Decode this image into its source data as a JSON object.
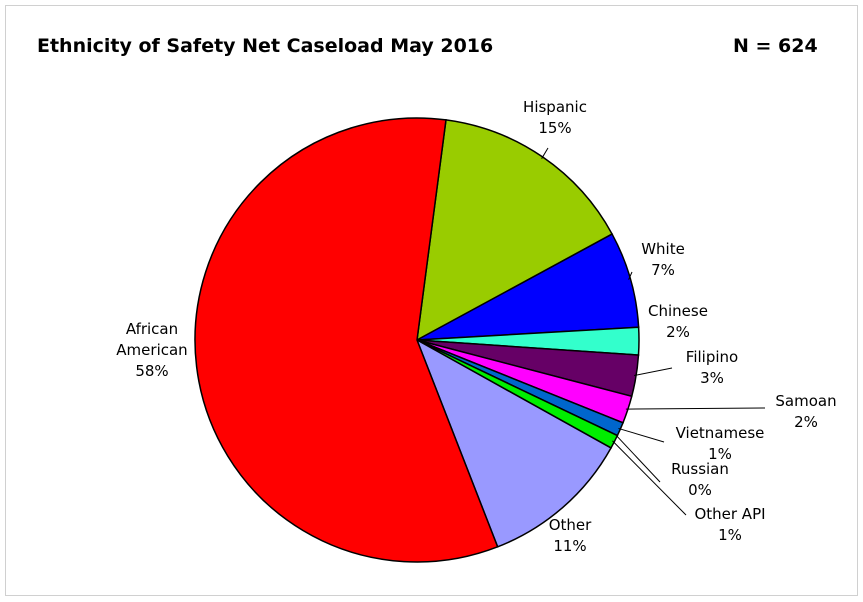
{
  "chart_data": {
    "type": "pie",
    "title": "Ethnicity of Safety Net Caseload May 2016",
    "subtitle": "N = 624",
    "categories": [
      "Hispanic",
      "White",
      "Chinese",
      "Filipino",
      "Samoan",
      "Vietnamese",
      "Russian",
      "Other API",
      "Other",
      "African American"
    ],
    "values": [
      15,
      7,
      2,
      3,
      2,
      1,
      0,
      1,
      11,
      58
    ],
    "value_labels": [
      "15%",
      "7%",
      "2%",
      "3%",
      "2%",
      "1%",
      "0%",
      "1%",
      "11%",
      "58%"
    ],
    "colors": [
      "#99cc00",
      "#0000ff",
      "#33ffcc",
      "#660066",
      "#ff00ff",
      "#0066cc",
      "#ffcc00",
      "#00ee00",
      "#9999ff",
      "#ff0000"
    ]
  }
}
